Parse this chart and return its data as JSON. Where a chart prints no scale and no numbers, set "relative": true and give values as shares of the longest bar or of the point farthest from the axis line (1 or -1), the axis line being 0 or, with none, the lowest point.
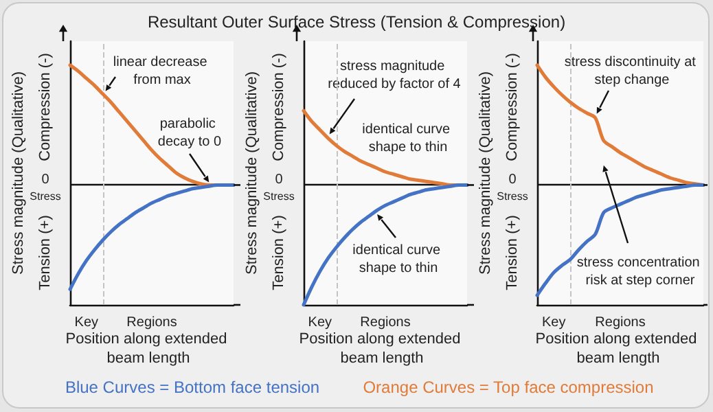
{
  "chart_data": [
    {
      "type": "line",
      "relative": true,
      "ylabel": "Stress magnitude (Qualitative)",
      "xlabel": "Position along extended beam length",
      "marker": "none",
      "line_style": "solid",
      "categories": [
        null,
        null,
        "Key",
        null,
        null,
        null,
        null,
        null,
        null,
        null,
        "Regions",
        null,
        null,
        null,
        null,
        null,
        null,
        null,
        null,
        null,
        null
      ],
      "annotations": [
        "0",
        "Stress",
        "Compression (-)",
        "Tension (+)",
        "linear decrease from max",
        "parabolic decay to 0"
      ],
      "series": [
        {
          "color": "#e07b39",
          "values": [
            1,
            0.95,
            0.89,
            0.83,
            0.76,
            0.69,
            0.61,
            0.53,
            0.45,
            0.37,
            0.29,
            0.22,
            0.16,
            0.1,
            0.06,
            0.03,
            0.01,
            0,
            0,
            0,
            0
          ]
        },
        {
          "color": "#4472c4",
          "values": [
            -0.87,
            -0.74,
            -0.63,
            -0.54,
            -0.46,
            -0.39,
            -0.33,
            -0.28,
            -0.23,
            -0.19,
            -0.15,
            -0.12,
            -0.09,
            -0.07,
            -0.05,
            -0.03,
            -0.02,
            -0.01,
            0,
            0,
            0
          ]
        }
      ]
    },
    {
      "type": "line",
      "relative": true,
      "ylabel": "Stress magnitude (Qualitative)",
      "xlabel": "Position along extended beam length",
      "marker": "none",
      "line_style": "solid",
      "categories": [
        null,
        null,
        "Key",
        null,
        null,
        null,
        null,
        null,
        null,
        null,
        "Regions",
        null,
        null,
        null,
        null,
        null,
        null,
        null,
        null,
        null,
        null
      ],
      "annotations": [
        "0",
        "Stress",
        "Compression (-)",
        "Tension (+)",
        "stress magnitude reduced by factor of 4",
        "identical curve shape to thin",
        "identical curve shape to thin"
      ],
      "series": [
        {
          "color": "#e07b39",
          "values": [
            0.62,
            0.53,
            0.46,
            0.39,
            0.33,
            0.28,
            0.24,
            0.2,
            0.17,
            0.14,
            0.11,
            0.09,
            0.07,
            0.05,
            0.04,
            0.03,
            0.02,
            0.01,
            0,
            0,
            0
          ]
        },
        {
          "color": "#4472c4",
          "values": [
            -1,
            -0.85,
            -0.72,
            -0.61,
            -0.52,
            -0.44,
            -0.37,
            -0.31,
            -0.26,
            -0.21,
            -0.17,
            -0.14,
            -0.11,
            -0.08,
            -0.06,
            -0.04,
            -0.03,
            -0.02,
            -0.01,
            0,
            0
          ]
        }
      ]
    },
    {
      "type": "line",
      "relative": true,
      "ylabel": "Stress magnitude (Qualitative)",
      "xlabel": "Position along extended beam length",
      "marker": "none",
      "line_style": "solid",
      "categories": [
        null,
        null,
        "Key",
        null,
        null,
        null,
        null,
        null,
        null,
        null,
        "Regions",
        null,
        null,
        null,
        null,
        null,
        null,
        null,
        null,
        null,
        null
      ],
      "annotations": [
        "0",
        "Stress",
        "Compression (-)",
        "Tension (+)",
        "stress discontinuity at step change",
        "stress concentration risk at step corner"
      ],
      "series": [
        {
          "color": "#e07b39",
          "values": [
            1,
            0.9,
            0.82,
            0.75,
            0.69,
            0.64,
            0.6,
            0.56,
            0.37,
            0.32,
            0.27,
            0.23,
            0.19,
            0.15,
            0.12,
            0.09,
            0.06,
            0.04,
            0.02,
            0.01,
            0
          ]
        },
        {
          "color": "#4472c4",
          "values": [
            -0.92,
            -0.82,
            -0.73,
            -0.67,
            -0.62,
            -0.54,
            -0.47,
            -0.41,
            -0.23,
            -0.19,
            -0.16,
            -0.13,
            -0.1,
            -0.08,
            -0.06,
            -0.04,
            -0.03,
            -0.02,
            -0.01,
            0,
            0
          ]
        }
      ]
    },
    {
      "type": "other",
      "title": "Resultant Outer Surface Stress (Tension & Compression)",
      "annotations": [
        "Blue Curves = Bottom face tension",
        "Orange Curves = Top face compression"
      ]
    }
  ]
}
